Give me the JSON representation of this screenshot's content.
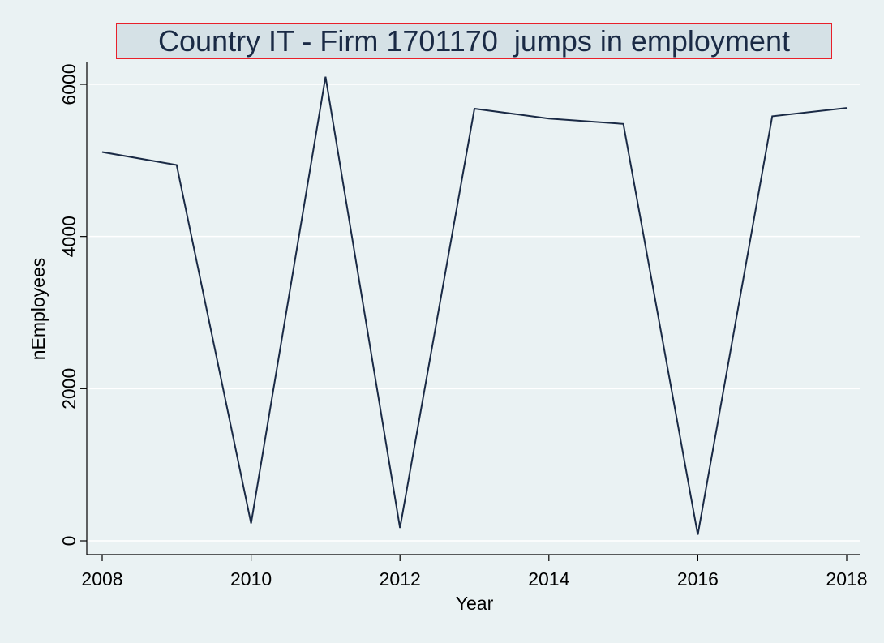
{
  "chart_data": {
    "type": "line",
    "title": "Country IT - Firm 1701170  jumps in employment",
    "xlabel": "Year",
    "ylabel": "nEmployees",
    "x": [
      2008,
      2009,
      2010,
      2011,
      2012,
      2013,
      2014,
      2015,
      2016,
      2017,
      2018
    ],
    "series": [
      {
        "values": [
          5110,
          4940,
          230,
          6100,
          170,
          5680,
          5550,
          5480,
          80,
          5580,
          5690
        ]
      }
    ],
    "xticks": [
      2008,
      2010,
      2012,
      2014,
      2016,
      2018
    ],
    "yticks": [
      0,
      2000,
      4000,
      6000
    ],
    "xlim": [
      2008,
      2018
    ],
    "ylim": [
      -150,
      6300
    ],
    "grid": "horizontal",
    "line_color": "#1a2a45",
    "gridline_color": "#ffffff",
    "title_border_color": "#e8202a",
    "title_background": "#d5e1e6",
    "background": "#eaf2f3"
  }
}
